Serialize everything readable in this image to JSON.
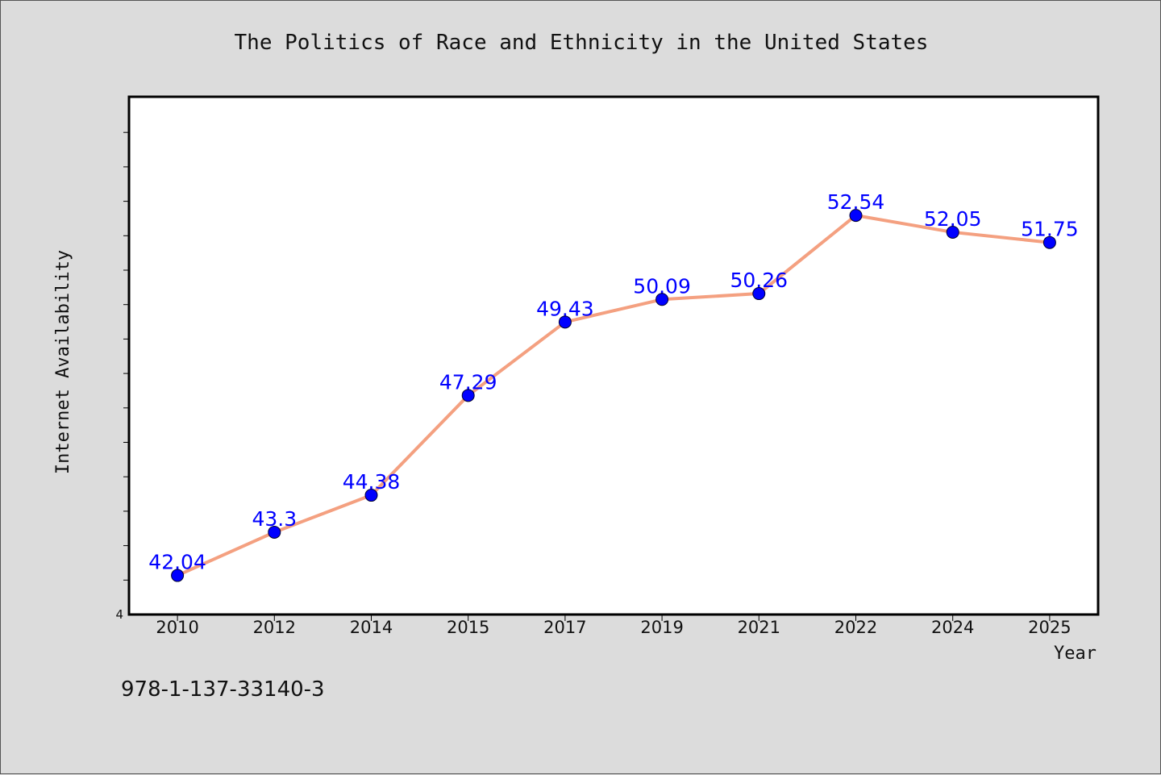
{
  "chart_data": {
    "type": "line",
    "title": "The Politics of Race and Ethnicity in the United States",
    "xlabel": "Year",
    "ylabel": "Internet Availability",
    "categories": [
      "2010",
      "2012",
      "2014",
      "2015",
      "2017",
      "2019",
      "2021",
      "2022",
      "2024",
      "2025"
    ],
    "series": [
      {
        "values": [
          42.04,
          43.3,
          44.38,
          47.29,
          49.43,
          50.09,
          50.26,
          52.54,
          52.05,
          51.75
        ],
        "labels": [
          "42.04",
          "43.3",
          "44.38",
          "47.29",
          "49.43",
          "50.09",
          "50.26",
          "52.54",
          "52.05",
          "51.75"
        ]
      }
    ],
    "ylim": [
      40.9,
      56
    ],
    "y_tick_label": "4",
    "grid": false,
    "colors": {
      "line": "#f4a080",
      "marker": "#0000ff",
      "label": "#0000ff"
    }
  },
  "footer": {
    "isbn": "978-1-137-33140-3"
  }
}
